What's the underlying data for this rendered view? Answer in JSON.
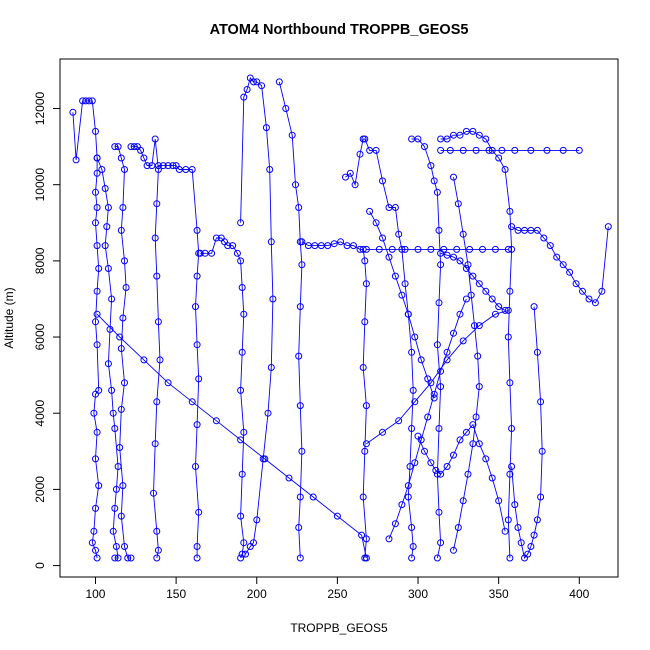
{
  "chart_data": {
    "type": "scatter",
    "title": "ATOM4 Northbound TROPPB_GEOS5",
    "xlabel": "TROPPB_GEOS5",
    "ylabel": "Altitude (m)",
    "xlim": [
      78,
      424
    ],
    "ylim": [
      -300,
      13300
    ],
    "x_ticks": [
      100,
      150,
      200,
      250,
      300,
      350,
      400
    ],
    "y_ticks": [
      0,
      2000,
      4000,
      6000,
      8000,
      10000,
      12000
    ],
    "grid": false,
    "series_color": "#0000ff",
    "series": [
      {
        "x": [
          86,
          88,
          92,
          94,
          96,
          98,
          100,
          101,
          101,
          100,
          101,
          100,
          101,
          102,
          101,
          100,
          101,
          102,
          100,
          99,
          101,
          100,
          102,
          100,
          99,
          98,
          100,
          101
        ],
        "y": [
          11900,
          10650,
          12200,
          12200,
          12200,
          12200,
          11400,
          10700,
          10300,
          9800,
          9400,
          9000,
          8400,
          7800,
          7200,
          6400,
          5800,
          4600,
          4500,
          4000,
          3500,
          2800,
          2100,
          1500,
          900,
          600,
          400,
          200
        ]
      },
      {
        "x": [
          101,
          104,
          106,
          108,
          107,
          106,
          108,
          110,
          109,
          108,
          110,
          111,
          112,
          114,
          113,
          112,
          111,
          113,
          114,
          112
        ],
        "y": [
          10700,
          10400,
          9900,
          9400,
          8900,
          8400,
          7800,
          7000,
          6200,
          5300,
          4600,
          4000,
          3600,
          2600,
          2000,
          1500,
          900,
          500,
          200,
          200
        ]
      },
      {
        "x": [
          112,
          114,
          116,
          118,
          117,
          116,
          118,
          119,
          117,
          116,
          118,
          116,
          115,
          117,
          116,
          118,
          120,
          122
        ],
        "y": [
          11000,
          11000,
          10700,
          10400,
          9400,
          8800,
          8000,
          7300,
          6500,
          5700,
          4800,
          4100,
          3100,
          2100,
          1300,
          500,
          200,
          200
        ]
      },
      {
        "x": [
          122,
          124,
          126,
          128,
          130,
          132,
          135,
          137,
          139,
          138,
          137,
          138,
          139,
          140,
          138,
          137,
          136,
          138,
          139,
          138
        ],
        "y": [
          11000,
          11000,
          11000,
          10900,
          10700,
          10500,
          10500,
          11200,
          10400,
          9500,
          8600,
          7600,
          6400,
          5400,
          4300,
          3200,
          1900,
          900,
          400,
          200
        ]
      },
      {
        "x": [
          139,
          142,
          145,
          148,
          150,
          152,
          156,
          160,
          163,
          164,
          163,
          162,
          163,
          164,
          163,
          162,
          164,
          163,
          163
        ],
        "y": [
          10500,
          10500,
          10500,
          10500,
          10500,
          10400,
          10400,
          10400,
          8800,
          8200,
          7600,
          6800,
          5800,
          4900,
          3700,
          2600,
          1400,
          500,
          200
        ]
      },
      {
        "x": [
          165,
          168,
          172,
          175,
          178,
          180,
          182,
          185,
          188,
          190,
          191,
          192,
          191,
          190,
          192,
          191,
          190,
          192,
          191,
          190
        ],
        "y": [
          8200,
          8200,
          8200,
          8600,
          8600,
          8500,
          8400,
          8400,
          8200,
          8000,
          7300,
          6600,
          5600,
          4600,
          3500,
          2400,
          1300,
          600,
          300,
          200
        ]
      },
      {
        "x": [
          190,
          192,
          194,
          196,
          198,
          200,
          203,
          206,
          208,
          209,
          210,
          209,
          207,
          204,
          200,
          198,
          196,
          193
        ],
        "y": [
          9000,
          12300,
          12500,
          12800,
          12700,
          12700,
          12600,
          11500,
          10400,
          8500,
          7000,
          5200,
          4000,
          2800,
          1200,
          600,
          500,
          300
        ]
      },
      {
        "x": [
          214,
          218,
          222,
          224,
          226,
          227,
          228,
          227,
          226,
          227,
          228,
          227,
          226,
          227
        ],
        "y": [
          12700,
          12000,
          11300,
          10000,
          9400,
          8500,
          7900,
          6800,
          5500,
          4200,
          3000,
          1800,
          1000,
          200
        ]
      },
      {
        "x": [
          228,
          232,
          236,
          240,
          244,
          248,
          252,
          256,
          260,
          264,
          266,
          267,
          268,
          267,
          266,
          268,
          267,
          266,
          268,
          267
        ],
        "y": [
          8500,
          8400,
          8400,
          8400,
          8400,
          8450,
          8500,
          8400,
          8400,
          8300,
          8300,
          8000,
          7400,
          6400,
          5200,
          4200,
          3000,
          1800,
          700,
          200
        ]
      },
      {
        "x": [
          255,
          258,
          261,
          264,
          266,
          267,
          270,
          274,
          278,
          282,
          286,
          288,
          290,
          292,
          294,
          296,
          297,
          296,
          295,
          294,
          296,
          297,
          296
        ],
        "y": [
          10200,
          10300,
          10000,
          10800,
          11200,
          11200,
          10900,
          10900,
          10100,
          9400,
          9400,
          8700,
          8300,
          7400,
          6600,
          5600,
          4600,
          3600,
          2600,
          1800,
          1000,
          500,
          200
        ]
      },
      {
        "x": [
          296,
          300,
          304,
          308,
          310,
          312,
          313,
          314,
          313,
          312,
          314,
          313,
          312,
          313,
          314,
          312
        ],
        "y": [
          11200,
          11200,
          11000,
          10500,
          10100,
          9800,
          8800,
          7900,
          6900,
          5800,
          4700,
          3600,
          2400,
          1400,
          600,
          200
        ]
      },
      {
        "x": [
          314,
          318,
          322,
          326,
          330,
          334,
          338,
          342,
          346,
          350,
          354,
          357,
          358,
          357,
          356,
          357,
          358,
          357,
          356,
          357
        ],
        "y": [
          11200,
          11200,
          11300,
          11300,
          11400,
          11400,
          11300,
          11200,
          10900,
          10700,
          10400,
          9300,
          8300,
          7200,
          6000,
          4800,
          3600,
          2400,
          1200,
          200
        ]
      },
      {
        "x": [
          358,
          362,
          366,
          370,
          374,
          378,
          382,
          386,
          390,
          394,
          398,
          402,
          406,
          410,
          414,
          418
        ],
        "y": [
          8900,
          8800,
          8800,
          8800,
          8800,
          8600,
          8400,
          8100,
          7900,
          7700,
          7400,
          7200,
          7000,
          6900,
          7200,
          8900
        ]
      },
      {
        "x": [
          372,
          374,
          376,
          377,
          376,
          374,
          372,
          370,
          368,
          366,
          364,
          362,
          360,
          358
        ],
        "y": [
          6800,
          5600,
          4300,
          3000,
          1800,
          1200,
          800,
          500,
          300,
          200,
          600,
          1000,
          1600,
          2600
        ]
      },
      {
        "x": [
          101,
          115,
          130,
          145,
          160,
          175,
          190,
          205,
          220,
          235,
          250,
          265,
          268
        ],
        "y": [
          6600,
          6000,
          5400,
          4800,
          4300,
          3800,
          3300,
          2800,
          2300,
          1800,
          1300,
          800,
          200
        ]
      },
      {
        "x": [
          268,
          278,
          288,
          298,
          308,
          318,
          328,
          338,
          348,
          356
        ],
        "y": [
          3200,
          3500,
          3800,
          4300,
          4800,
          5400,
          5900,
          6300,
          6600,
          6700
        ]
      },
      {
        "x": [
          300,
          304,
          308,
          311,
          314,
          318,
          322,
          326,
          330,
          334,
          338,
          342,
          346,
          350,
          354
        ],
        "y": [
          3400,
          3000,
          2700,
          2500,
          2400,
          2600,
          2900,
          3300,
          3500,
          3700,
          3200,
          2800,
          2300,
          1700,
          900
        ]
      },
      {
        "x": [
          282,
          286,
          290,
          294,
          298,
          302,
          306,
          310,
          314,
          318,
          322,
          326,
          330
        ],
        "y": [
          700,
          1100,
          1600,
          2100,
          2700,
          3300,
          3900,
          4500,
          5100,
          5600,
          6100,
          6600,
          7000
        ]
      },
      {
        "x": [
          270,
          274,
          278,
          282,
          286,
          290,
          294,
          298,
          302,
          306,
          310
        ],
        "y": [
          9300,
          9000,
          8600,
          8100,
          7600,
          7100,
          6600,
          6000,
          5400,
          4900,
          4400
        ]
      },
      {
        "x": [
          314,
          320,
          328,
          336,
          344,
          352,
          360,
          370,
          380,
          390,
          400
        ],
        "y": [
          10900,
          10900,
          10900,
          10900,
          10900,
          10900,
          10900,
          10900,
          10900,
          10900,
          10900
        ]
      },
      {
        "x": [
          268,
          276,
          284,
          292,
          300,
          308,
          316,
          324,
          332,
          340,
          348,
          356
        ],
        "y": [
          8300,
          8300,
          8300,
          8300,
          8300,
          8300,
          8300,
          8300,
          8300,
          8300,
          8300,
          8300
        ]
      },
      {
        "x": [
          314,
          318,
          322,
          326,
          330,
          334,
          338,
          342,
          346,
          350,
          354
        ],
        "y": [
          8200,
          8150,
          8100,
          8000,
          7800,
          7600,
          7400,
          7200,
          7000,
          6800,
          6700
        ]
      },
      {
        "x": [
          322,
          325,
          328,
          331,
          333,
          335,
          337,
          338,
          336,
          334,
          331,
          328,
          325,
          322
        ],
        "y": [
          10200,
          9500,
          8700,
          7900,
          7100,
          6300,
          5500,
          4700,
          3900,
          3200,
          2400,
          1700,
          1000,
          400
        ]
      }
    ]
  }
}
